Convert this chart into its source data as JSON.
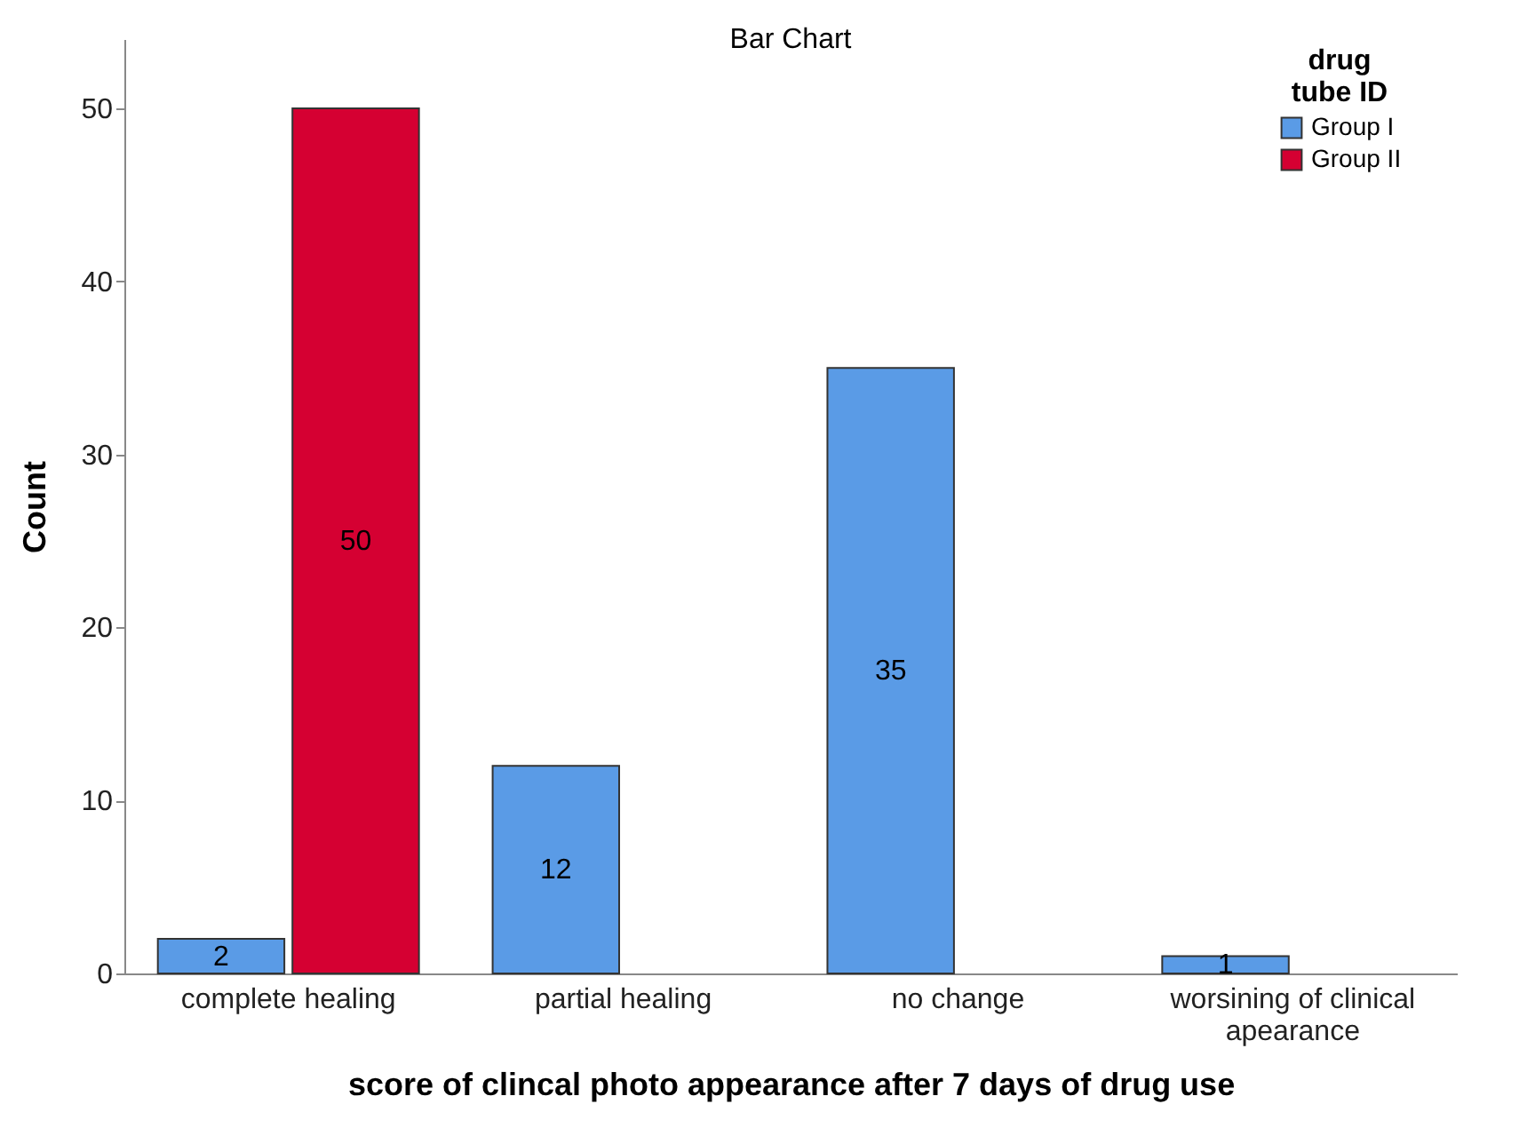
{
  "chart_data": {
    "type": "bar",
    "title": "Bar Chart",
    "xlabel": "score of clincal photo appearance after 7 days of drug use",
    "ylabel": "Count",
    "legend_title": "drug tube ID",
    "categories": [
      "complete healing",
      "partial healing",
      "no change",
      "worsining of clinical apearance"
    ],
    "series": [
      {
        "name": "Group I",
        "color": "#5a9be6",
        "values": [
          2,
          12,
          35,
          1
        ]
      },
      {
        "name": "Group II",
        "color": "#d50032",
        "values": [
          50,
          null,
          null,
          null
        ]
      }
    ],
    "ylim": [
      0,
      54
    ],
    "yticks": [
      0,
      10,
      20,
      30,
      40,
      50
    ],
    "grid": false,
    "legend": "top right",
    "data_labels": true
  }
}
